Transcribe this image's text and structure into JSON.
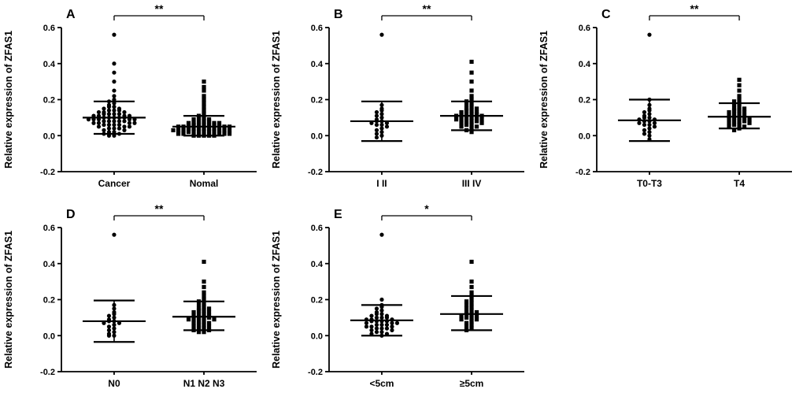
{
  "figure": {
    "background": "#ffffff",
    "ink_color": "#000000",
    "ylim": [
      -0.2,
      0.6
    ],
    "yticks": [
      -0.2,
      0.0,
      0.2,
      0.4,
      0.6
    ]
  },
  "chart_data": [
    {
      "type": "scatter",
      "panel_label": "A",
      "significance": "**",
      "ylabel": "Relative expression of ZFAS1",
      "ylim": [
        -0.2,
        0.6
      ],
      "yticks": [
        -0.2,
        0.0,
        0.2,
        0.4,
        0.6
      ],
      "groups": [
        {
          "label": "Cancer",
          "marker": "circle",
          "mean": 0.1,
          "sd_low": 0.01,
          "sd_high": 0.19,
          "values": [
            0.56,
            0.4,
            0.35,
            0.3,
            0.25,
            0.22,
            0.2,
            0.19,
            0.18,
            0.17,
            0.16,
            0.16,
            0.15,
            0.15,
            0.14,
            0.14,
            0.14,
            0.13,
            0.13,
            0.13,
            0.12,
            0.12,
            0.12,
            0.12,
            0.11,
            0.11,
            0.11,
            0.11,
            0.1,
            0.1,
            0.1,
            0.1,
            0.1,
            0.09,
            0.09,
            0.09,
            0.09,
            0.09,
            0.08,
            0.08,
            0.08,
            0.08,
            0.08,
            0.07,
            0.07,
            0.07,
            0.07,
            0.06,
            0.06,
            0.06,
            0.06,
            0.05,
            0.05,
            0.05,
            0.04,
            0.04,
            0.04,
            0.03,
            0.03,
            0.02,
            0.02,
            0.01,
            0.01,
            0.0,
            0.0
          ]
        },
        {
          "label": "Nomal",
          "marker": "square",
          "mean": 0.05,
          "sd_low": 0.0,
          "sd_high": 0.11,
          "values": [
            0.3,
            0.27,
            0.25,
            0.22,
            0.2,
            0.18,
            0.16,
            0.14,
            0.12,
            0.11,
            0.1,
            0.1,
            0.09,
            0.09,
            0.08,
            0.08,
            0.08,
            0.07,
            0.07,
            0.07,
            0.07,
            0.06,
            0.06,
            0.06,
            0.06,
            0.06,
            0.05,
            0.05,
            0.05,
            0.05,
            0.05,
            0.05,
            0.04,
            0.04,
            0.04,
            0.04,
            0.04,
            0.04,
            0.03,
            0.03,
            0.03,
            0.03,
            0.03,
            0.03,
            0.02,
            0.02,
            0.02,
            0.02,
            0.02,
            0.02,
            0.01,
            0.01,
            0.01,
            0.01,
            0.01,
            0.0,
            0.0,
            0.0,
            0.0,
            0.0
          ]
        }
      ]
    },
    {
      "type": "scatter",
      "panel_label": "B",
      "significance": "**",
      "ylabel": "Relative expression of ZFAS1",
      "ylim": [
        -0.2,
        0.6
      ],
      "yticks": [
        -0.2,
        0.0,
        0.2,
        0.4,
        0.6
      ],
      "groups": [
        {
          "label": "I II",
          "marker": "circle",
          "mean": 0.08,
          "sd_low": -0.03,
          "sd_high": 0.19,
          "values": [
            0.56,
            0.17,
            0.15,
            0.14,
            0.13,
            0.12,
            0.11,
            0.1,
            0.09,
            0.08,
            0.08,
            0.07,
            0.07,
            0.06,
            0.06,
            0.05,
            0.04,
            0.03,
            0.02,
            0.01,
            0.0,
            -0.01
          ]
        },
        {
          "label": "III IV",
          "marker": "square",
          "mean": 0.11,
          "sd_low": 0.03,
          "sd_high": 0.19,
          "values": [
            0.41,
            0.35,
            0.3,
            0.25,
            0.22,
            0.2,
            0.19,
            0.18,
            0.17,
            0.16,
            0.15,
            0.15,
            0.14,
            0.14,
            0.13,
            0.13,
            0.12,
            0.12,
            0.12,
            0.11,
            0.11,
            0.11,
            0.1,
            0.1,
            0.1,
            0.09,
            0.09,
            0.09,
            0.08,
            0.08,
            0.08,
            0.07,
            0.07,
            0.06,
            0.06,
            0.05,
            0.05,
            0.04,
            0.03,
            0.02
          ]
        }
      ]
    },
    {
      "type": "scatter",
      "panel_label": "C",
      "significance": "**",
      "ylabel": "Relative expression of ZFAS1",
      "ylim": [
        -0.2,
        0.6
      ],
      "yticks": [
        -0.2,
        0.0,
        0.2,
        0.4,
        0.6
      ],
      "groups": [
        {
          "label": "T0-T3",
          "marker": "circle",
          "mean": 0.085,
          "sd_low": -0.03,
          "sd_high": 0.2,
          "values": [
            0.56,
            0.2,
            0.17,
            0.15,
            0.14,
            0.13,
            0.12,
            0.11,
            0.1,
            0.1,
            0.09,
            0.09,
            0.08,
            0.08,
            0.07,
            0.07,
            0.06,
            0.06,
            0.05,
            0.04,
            0.03,
            0.02,
            0.01,
            0.0,
            -0.02
          ]
        },
        {
          "label": "T4",
          "marker": "square",
          "mean": 0.105,
          "sd_low": 0.04,
          "sd_high": 0.18,
          "values": [
            0.31,
            0.28,
            0.25,
            0.22,
            0.2,
            0.19,
            0.18,
            0.17,
            0.16,
            0.15,
            0.15,
            0.14,
            0.14,
            0.13,
            0.13,
            0.12,
            0.12,
            0.11,
            0.11,
            0.1,
            0.1,
            0.1,
            0.09,
            0.09,
            0.08,
            0.08,
            0.08,
            0.07,
            0.07,
            0.06,
            0.06,
            0.05,
            0.05,
            0.04,
            0.03
          ]
        }
      ]
    },
    {
      "type": "scatter",
      "panel_label": "D",
      "significance": "**",
      "ylabel": "Relative expression of ZFAS1",
      "ylim": [
        -0.2,
        0.6
      ],
      "yticks": [
        -0.2,
        0.0,
        0.2,
        0.4,
        0.6
      ],
      "groups": [
        {
          "label": "N0",
          "marker": "circle",
          "mean": 0.08,
          "sd_low": -0.035,
          "sd_high": 0.195,
          "values": [
            0.56,
            0.17,
            0.15,
            0.13,
            0.12,
            0.11,
            0.1,
            0.09,
            0.08,
            0.08,
            0.07,
            0.07,
            0.06,
            0.05,
            0.04,
            0.03,
            0.02,
            0.01,
            0.0,
            0.0
          ]
        },
        {
          "label": "N1 N2 N3",
          "marker": "square",
          "mean": 0.105,
          "sd_low": 0.03,
          "sd_high": 0.19,
          "values": [
            0.41,
            0.3,
            0.27,
            0.24,
            0.22,
            0.2,
            0.19,
            0.18,
            0.17,
            0.16,
            0.15,
            0.15,
            0.14,
            0.14,
            0.13,
            0.13,
            0.12,
            0.12,
            0.11,
            0.11,
            0.1,
            0.1,
            0.1,
            0.09,
            0.09,
            0.09,
            0.08,
            0.08,
            0.07,
            0.07,
            0.06,
            0.06,
            0.05,
            0.05,
            0.04,
            0.04,
            0.03,
            0.03,
            0.02,
            0.02
          ]
        }
      ]
    },
    {
      "type": "scatter",
      "panel_label": "E",
      "significance": "*",
      "ylabel": "Relative expression of ZFAS1",
      "ylim": [
        -0.2,
        0.6
      ],
      "yticks": [
        -0.2,
        0.0,
        0.2,
        0.4,
        0.6
      ],
      "groups": [
        {
          "label": "<5cm",
          "marker": "circle",
          "mean": 0.085,
          "sd_low": 0.0,
          "sd_high": 0.17,
          "values": [
            0.56,
            0.2,
            0.17,
            0.16,
            0.15,
            0.14,
            0.13,
            0.12,
            0.12,
            0.11,
            0.11,
            0.1,
            0.1,
            0.1,
            0.09,
            0.09,
            0.09,
            0.08,
            0.08,
            0.08,
            0.08,
            0.07,
            0.07,
            0.07,
            0.06,
            0.06,
            0.06,
            0.05,
            0.05,
            0.05,
            0.04,
            0.04,
            0.04,
            0.03,
            0.03,
            0.02,
            0.02,
            0.01,
            0.01,
            0.0
          ]
        },
        {
          "label": "≥5cm",
          "marker": "square",
          "mean": 0.12,
          "sd_low": 0.03,
          "sd_high": 0.22,
          "values": [
            0.41,
            0.3,
            0.27,
            0.24,
            0.22,
            0.2,
            0.19,
            0.18,
            0.17,
            0.16,
            0.15,
            0.14,
            0.13,
            0.13,
            0.12,
            0.12,
            0.11,
            0.11,
            0.1,
            0.1,
            0.09,
            0.09,
            0.08,
            0.07,
            0.06,
            0.05,
            0.04,
            0.03
          ]
        }
      ]
    }
  ]
}
